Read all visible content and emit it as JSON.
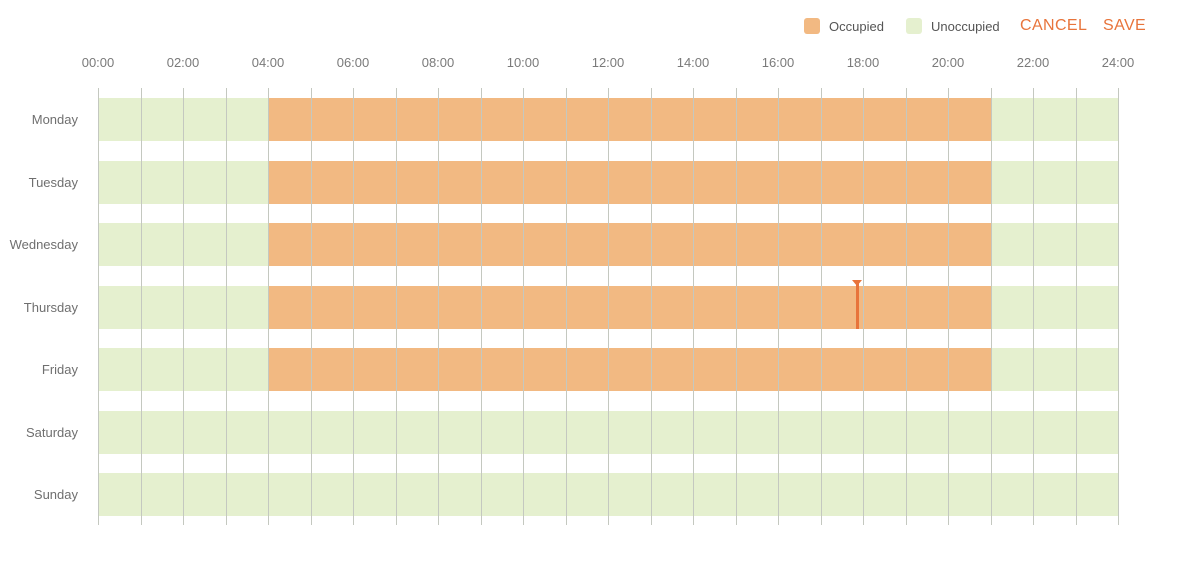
{
  "legend": {
    "occupied_label": "Occupied",
    "unoccupied_label": "Unoccupied"
  },
  "actions": {
    "cancel_label": "CANCEL",
    "save_label": "SAVE"
  },
  "colors": {
    "occupied": "#f2b982",
    "unoccupied": "#e5f0cf",
    "accent": "#e8743b",
    "grid": "#c4c8c0"
  },
  "axis": {
    "start_hour": 0,
    "end_hour": 24,
    "labels": [
      "00:00",
      "02:00",
      "04:00",
      "06:00",
      "08:00",
      "10:00",
      "12:00",
      "14:00",
      "16:00",
      "18:00",
      "20:00",
      "22:00",
      "24:00"
    ]
  },
  "schedule": [
    {
      "day": "Monday",
      "occupied": [
        [
          4,
          21
        ]
      ]
    },
    {
      "day": "Tuesday",
      "occupied": [
        [
          4,
          21
        ]
      ]
    },
    {
      "day": "Wednesday",
      "occupied": [
        [
          4,
          21
        ]
      ]
    },
    {
      "day": "Thursday",
      "occupied": [
        [
          4,
          21
        ]
      ]
    },
    {
      "day": "Friday",
      "occupied": [
        [
          4,
          21
        ]
      ]
    },
    {
      "day": "Saturday",
      "occupied": []
    },
    {
      "day": "Sunday",
      "occupied": []
    }
  ],
  "current_marker": {
    "day": "Thursday",
    "hour": 17.85
  }
}
